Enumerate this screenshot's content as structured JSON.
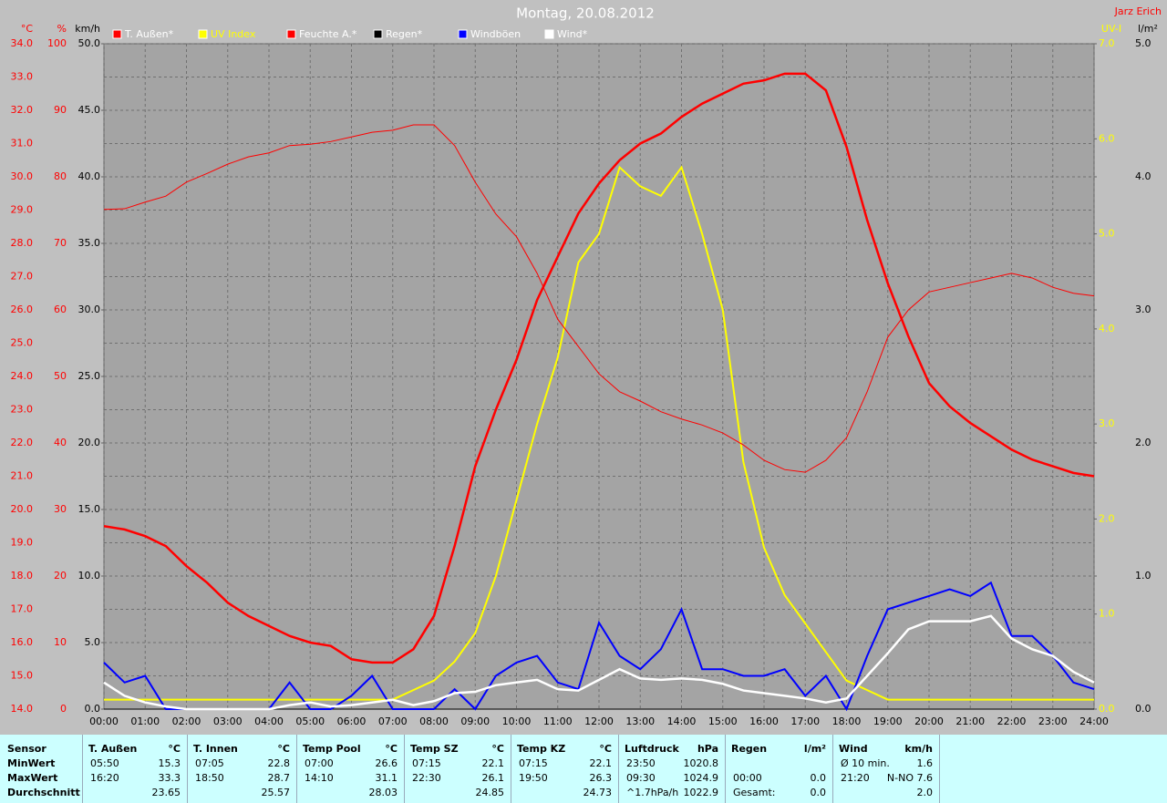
{
  "chart_data": {
    "type": "line",
    "title": "Montag, 20.08.2012",
    "author": "Jarz Erich",
    "background": "#c0c0c0",
    "plot_background": "#a4a4a4",
    "grid": true,
    "xlim": [
      0,
      24
    ],
    "xticks": [
      {
        "value": 0,
        "label": "00:00"
      },
      {
        "value": 1,
        "label": "01:00"
      },
      {
        "value": 2,
        "label": "02:00"
      },
      {
        "value": 3,
        "label": "03:00"
      },
      {
        "value": 4,
        "label": "04:00"
      },
      {
        "value": 5,
        "label": "05:00"
      },
      {
        "value": 6,
        "label": "06:00"
      },
      {
        "value": 7,
        "label": "07:00"
      },
      {
        "value": 8,
        "label": "08:00"
      },
      {
        "value": 9,
        "label": "09:00"
      },
      {
        "value": 10,
        "label": "10:00"
      },
      {
        "value": 11,
        "label": "11:00"
      },
      {
        "value": 12,
        "label": "12:00"
      },
      {
        "value": 13,
        "label": "13:00"
      },
      {
        "value": 14,
        "label": "14:00"
      },
      {
        "value": 15,
        "label": "15:00"
      },
      {
        "value": 16,
        "label": "16:00"
      },
      {
        "value": 17,
        "label": "17:00"
      },
      {
        "value": 18,
        "label": "18:00"
      },
      {
        "value": 19,
        "label": "19:00"
      },
      {
        "value": 20,
        "label": "20:00"
      },
      {
        "value": 21,
        "label": "21:00"
      },
      {
        "value": 22,
        "label": "22:00"
      },
      {
        "value": 23,
        "label": "23:00"
      },
      {
        "value": 24,
        "label": "24:00"
      }
    ],
    "axes": [
      {
        "label": "°C",
        "color": "#ff0000",
        "lim": [
          14,
          34
        ],
        "ticks": [
          {
            "value": 14,
            "label": "14.0"
          },
          {
            "value": 15,
            "label": "15.0"
          },
          {
            "value": 16,
            "label": "16.0"
          },
          {
            "value": 17,
            "label": "17.0"
          },
          {
            "value": 18,
            "label": "18.0"
          },
          {
            "value": 19,
            "label": "19.0"
          },
          {
            "value": 20,
            "label": "20.0"
          },
          {
            "value": 21,
            "label": "21.0"
          },
          {
            "value": 22,
            "label": "22.0"
          },
          {
            "value": 23,
            "label": "23.0"
          },
          {
            "value": 24,
            "label": "24.0"
          },
          {
            "value": 25,
            "label": "25.0"
          },
          {
            "value": 26,
            "label": "26.0"
          },
          {
            "value": 27,
            "label": "27.0"
          },
          {
            "value": 28,
            "label": "28.0"
          },
          {
            "value": 29,
            "label": "29.0"
          },
          {
            "value": 30,
            "label": "30.0"
          },
          {
            "value": 31,
            "label": "31.0"
          },
          {
            "value": 32,
            "label": "32.0"
          },
          {
            "value": 33,
            "label": "33.0"
          },
          {
            "value": 34,
            "label": "34.0"
          }
        ]
      },
      {
        "label": "%",
        "color": "#ff0000",
        "lim": [
          0,
          100
        ],
        "ticks": [
          0,
          10,
          20,
          30,
          40,
          50,
          60,
          70,
          80,
          90,
          100
        ]
      },
      {
        "label": "km/h",
        "color": "#000000",
        "lim": [
          0,
          50
        ],
        "ticks": [
          {
            "value": 0,
            "label": "0.0"
          },
          {
            "value": 5,
            "label": "5.0"
          },
          {
            "value": 10,
            "label": "10.0"
          },
          {
            "value": 15,
            "label": "15.0"
          },
          {
            "value": 20,
            "label": "20.0"
          },
          {
            "value": 25,
            "label": "25.0"
          },
          {
            "value": 30,
            "label": "30.0"
          },
          {
            "value": 35,
            "label": "35.0"
          },
          {
            "value": 40,
            "label": "40.0"
          },
          {
            "value": 45,
            "label": "45.0"
          },
          {
            "value": 50,
            "label": "50.0"
          }
        ]
      },
      {
        "label": "UV-I",
        "color": "#ffff00",
        "lim": [
          0,
          7
        ],
        "ticks": [
          {
            "value": 0,
            "label": "0.0"
          },
          {
            "value": 1,
            "label": "1.0"
          },
          {
            "value": 2,
            "label": "2.0"
          },
          {
            "value": 3,
            "label": "3.0"
          },
          {
            "value": 4,
            "label": "4.0"
          },
          {
            "value": 5,
            "label": "5.0"
          },
          {
            "value": 6,
            "label": "6.0"
          },
          {
            "value": 7,
            "label": "7.0"
          }
        ]
      },
      {
        "label": "l/m²",
        "color": "#000000",
        "lim": [
          0,
          5
        ],
        "ticks": [
          {
            "value": 0,
            "label": "0.0"
          },
          {
            "value": 1,
            "label": "1.0"
          },
          {
            "value": 2,
            "label": "2.0"
          },
          {
            "value": 3,
            "label": "3.0"
          },
          {
            "value": 4,
            "label": "4.0"
          },
          {
            "value": 5,
            "label": "5.0"
          }
        ]
      }
    ],
    "x": [
      0,
      0.5,
      1,
      1.5,
      2,
      2.5,
      3,
      3.5,
      4,
      4.5,
      5,
      5.5,
      6,
      6.5,
      7,
      7.5,
      8,
      8.5,
      9,
      9.5,
      10,
      10.5,
      11,
      11.5,
      12,
      12.5,
      13,
      13.5,
      14,
      14.5,
      15,
      15.5,
      16,
      16.5,
      17,
      17.5,
      18,
      18.5,
      19,
      19.5,
      20,
      20.5,
      21,
      21.5,
      22,
      22.5,
      23,
      23.5,
      24
    ],
    "series": [
      {
        "name": "T. Außen*",
        "color": "#ff0000",
        "axis": 0,
        "line_width": 2.5,
        "values": [
          19.5,
          19.4,
          19.2,
          18.9,
          18.3,
          17.8,
          17.2,
          16.8,
          16.5,
          16.2,
          16.0,
          15.9,
          15.5,
          15.4,
          15.4,
          15.8,
          16.8,
          18.9,
          21.3,
          23.0,
          24.5,
          26.3,
          27.6,
          28.9,
          29.8,
          30.5,
          31.0,
          31.3,
          31.8,
          32.2,
          32.5,
          32.8,
          32.9,
          33.1,
          33.1,
          32.6,
          30.9,
          28.7,
          26.8,
          25.2,
          23.8,
          23.1,
          22.6,
          22.2,
          21.8,
          21.5,
          21.3,
          21.1,
          21.0
        ]
      },
      {
        "name": "UV Index",
        "color": "#ffff00",
        "axis": 3,
        "line_width": 2,
        "values": [
          0.1,
          0.1,
          0.1,
          0.1,
          0.1,
          0.1,
          0.1,
          0.1,
          0.1,
          0.1,
          0.1,
          0.1,
          0.1,
          0.1,
          0.1,
          0.2,
          0.3,
          0.5,
          0.8,
          1.4,
          2.2,
          3.0,
          3.7,
          4.7,
          5.0,
          5.7,
          5.5,
          5.4,
          5.7,
          5.0,
          4.2,
          2.6,
          1.7,
          1.2,
          0.9,
          0.6,
          0.3,
          0.2,
          0.1,
          0.1,
          0.1,
          0.1,
          0.1,
          0.1,
          0.1,
          0.1,
          0.1,
          0.1,
          0.1
        ]
      },
      {
        "name": "Feuchte A.*",
        "color": "#ff0000",
        "axis": 1,
        "line_width": 1,
        "values": [
          75.1,
          75.2,
          76.2,
          77.1,
          79.2,
          80.5,
          81.9,
          83.0,
          83.6,
          84.7,
          84.9,
          85.3,
          86.0,
          86.7,
          87.0,
          87.8,
          87.8,
          84.7,
          79.2,
          74.4,
          71.0,
          65.5,
          58.6,
          54.5,
          50.4,
          47.7,
          46.3,
          44.7,
          43.6,
          42.7,
          41.5,
          39.7,
          37.4,
          36.0,
          35.6,
          37.4,
          40.8,
          47.7,
          55.9,
          60.0,
          62.7,
          63.4,
          64.1,
          64.8,
          65.5,
          64.8,
          63.4,
          62.5,
          62.1
        ]
      },
      {
        "name": "Regen*",
        "color": "#000000",
        "axis": 4,
        "line_width": 1,
        "values": [
          0,
          0,
          0,
          0,
          0,
          0,
          0,
          0,
          0,
          0,
          0,
          0,
          0,
          0,
          0,
          0,
          0,
          0,
          0,
          0,
          0,
          0,
          0,
          0,
          0,
          0,
          0,
          0,
          0,
          0,
          0,
          0,
          0,
          0,
          0,
          0,
          0,
          0,
          0,
          0,
          0,
          0,
          0,
          0,
          0,
          0,
          0,
          0,
          0
        ]
      },
      {
        "name": "Windböen",
        "color": "#0000ff",
        "axis": 2,
        "line_width": 2,
        "values": [
          3.5,
          2.0,
          2.5,
          0,
          0,
          0,
          0,
          0,
          0,
          2.0,
          0,
          0,
          1.0,
          2.5,
          0,
          0,
          0,
          1.5,
          0,
          2.5,
          3.5,
          4.0,
          2.0,
          1.5,
          6.5,
          4.0,
          3.0,
          4.5,
          7.5,
          3.0,
          3.0,
          2.5,
          2.5,
          3.0,
          1.0,
          2.5,
          0,
          4.0,
          7.5,
          8.0,
          8.5,
          9.0,
          8.5,
          9.5,
          5.5,
          5.5,
          4.0,
          2.0,
          1.5
        ]
      },
      {
        "name": "Wind*",
        "color": "#ffffff",
        "axis": 2,
        "line_width": 2.5,
        "values": [
          2.0,
          1.0,
          0.5,
          0.2,
          0.0,
          0.0,
          0.0,
          0.0,
          0.0,
          0.3,
          0.5,
          0.2,
          0.3,
          0.5,
          0.7,
          0.3,
          0.6,
          1.2,
          1.3,
          1.8,
          2.0,
          2.2,
          1.5,
          1.4,
          2.2,
          3.0,
          2.3,
          2.2,
          2.3,
          2.2,
          1.9,
          1.4,
          1.2,
          1.0,
          0.8,
          0.5,
          0.8,
          2.5,
          4.2,
          6.0,
          6.6,
          6.6,
          6.6,
          7.0,
          5.3,
          4.5,
          4.0,
          2.8,
          2.0
        ]
      }
    ]
  },
  "table": {
    "row_labels": [
      "Sensor",
      "MinWert",
      "MaxWert",
      "Durchschnitt"
    ],
    "groups": [
      {
        "title": "T. Außen",
        "unit": "°C",
        "rows": [
          [
            "05:50",
            "15.3"
          ],
          [
            "16:20",
            "33.3"
          ],
          [
            null,
            "23.65"
          ]
        ]
      },
      {
        "title": "T. Innen",
        "unit": "°C",
        "rows": [
          [
            "07:05",
            "22.8"
          ],
          [
            "18:50",
            "28.7"
          ],
          [
            null,
            "25.57"
          ]
        ]
      },
      {
        "title": "Temp Pool",
        "unit": "°C",
        "rows": [
          [
            "07:00",
            "26.6"
          ],
          [
            "14:10",
            "31.1"
          ],
          [
            null,
            "28.03"
          ]
        ]
      },
      {
        "title": "Temp SZ",
        "unit": "°C",
        "rows": [
          [
            "07:15",
            "22.1"
          ],
          [
            "22:30",
            "26.1"
          ],
          [
            null,
            "24.85"
          ]
        ]
      },
      {
        "title": "Temp KZ",
        "unit": "°C",
        "rows": [
          [
            "07:15",
            "22.1"
          ],
          [
            "19:50",
            "26.3"
          ],
          [
            null,
            "24.73"
          ]
        ]
      },
      {
        "title": "Luftdruck",
        "unit": "hPa",
        "rows": [
          [
            "23:50",
            "1020.8"
          ],
          [
            "09:30",
            "1024.9"
          ],
          [
            "^1.7hPa/h",
            "1022.9"
          ]
        ]
      },
      {
        "title": "Regen",
        "unit": "l/m²",
        "rows": [
          [
            null,
            null
          ],
          [
            "00:00",
            "0.0"
          ],
          [
            "Gesamt:",
            "0.0"
          ]
        ]
      },
      {
        "title": "Wind",
        "unit": "km/h",
        "rows": [
          [
            "Ø 10 min.",
            "1.6"
          ],
          [
            "21:20",
            "N-NO 7.6"
          ],
          [
            null,
            "2.0"
          ]
        ]
      }
    ]
  }
}
